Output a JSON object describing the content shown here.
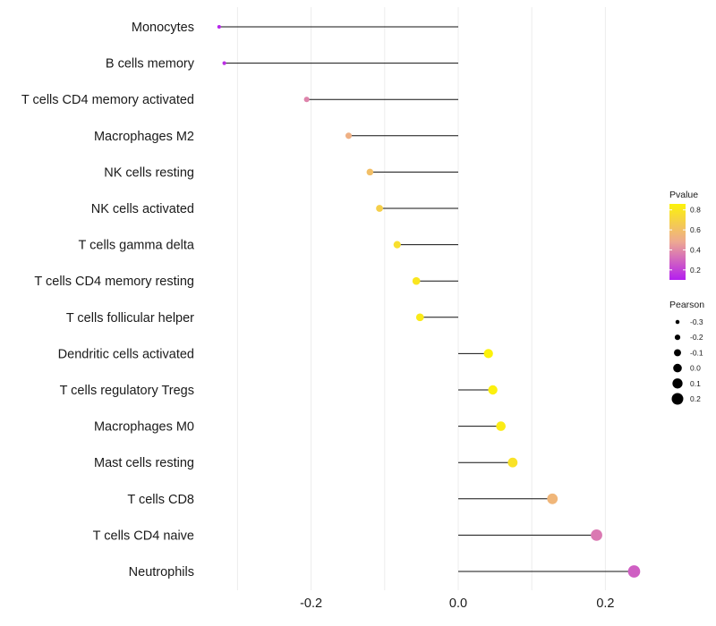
{
  "chart_data": {
    "type": "lollipop",
    "title": "",
    "xlabel": "",
    "ylabel": "",
    "xlim": [
      -0.325,
      0.255
    ],
    "xticks": [
      -0.2,
      0.0,
      0.2
    ],
    "xtick_labels": [
      "-0.2",
      "0.0",
      "0.2"
    ],
    "categories": [
      "Monocytes",
      "B cells memory",
      "T cells CD4 memory activated",
      "Macrophages M2",
      "NK cells resting",
      "NK cells activated",
      "T cells gamma delta",
      "T cells CD4 memory resting",
      "T cells follicular helper",
      "Dendritic cells activated",
      "T cells regulatory  Tregs ",
      "Macrophages M0",
      "Mast cells resting",
      "T cells CD8",
      "T cells CD4 naive",
      "Neutrophils"
    ],
    "pearson": [
      -0.325,
      -0.318,
      -0.206,
      -0.149,
      -0.12,
      -0.107,
      -0.083,
      -0.057,
      -0.052,
      0.041,
      0.047,
      0.058,
      0.074,
      0.128,
      0.188,
      0.239
    ],
    "pvalue": [
      0.12,
      0.15,
      0.38,
      0.52,
      0.6,
      0.68,
      0.76,
      0.8,
      0.82,
      0.86,
      0.85,
      0.83,
      0.78,
      0.55,
      0.35,
      0.28
    ],
    "legend_pvalue": {
      "title": "Pvalue",
      "ticks": [
        0.8,
        0.6,
        0.4,
        0.2
      ],
      "tick_labels": [
        "0.8",
        "0.6",
        "0.4",
        "0.2"
      ],
      "range": [
        0.1,
        0.86
      ],
      "low_color": "#b41ef0",
      "mid_color": "#eda892",
      "high_color": "#fcf20a"
    },
    "legend_pearson": {
      "title": "Pearson",
      "values": [
        -0.3,
        -0.2,
        -0.1,
        0.0,
        0.1,
        0.2
      ],
      "labels": [
        "-0.3",
        "-0.2",
        "-0.1",
        "0.0",
        "0.1",
        "0.2"
      ]
    },
    "grid": true
  }
}
